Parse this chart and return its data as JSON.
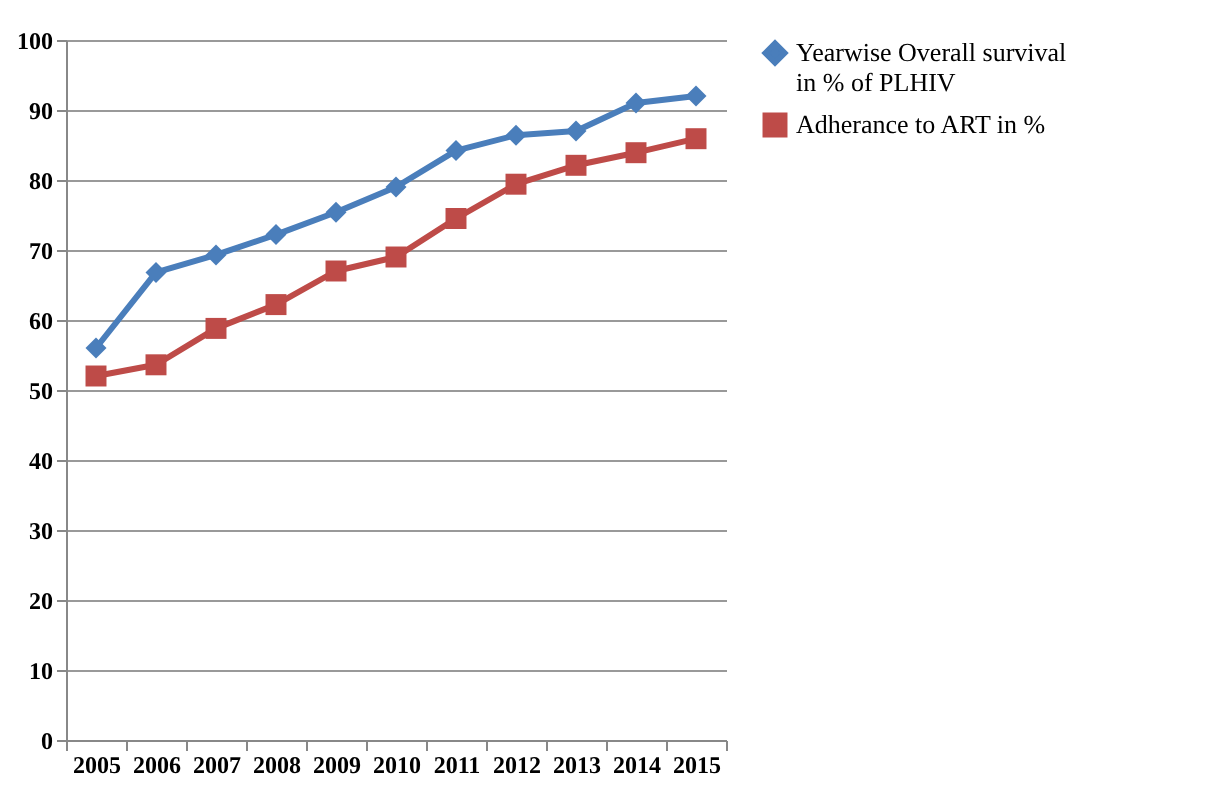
{
  "chart_data": {
    "type": "line",
    "categories": [
      "2005",
      "2006",
      "2007",
      "2008",
      "2009",
      "2010",
      "2011",
      "2012",
      "2013",
      "2014",
      "2015"
    ],
    "ylim": [
      0,
      100
    ],
    "yticks": [
      0,
      10,
      20,
      30,
      40,
      50,
      60,
      70,
      80,
      90,
      100
    ],
    "grid": "y",
    "legend": "right",
    "series": [
      {
        "name": "Yearwise Overall survival in % of PLHIV",
        "color": "#4a7ebb",
        "marker": "diamond",
        "values": [
          56,
          66.8,
          69.3,
          72.2,
          75.4,
          79,
          84.2,
          86.4,
          87,
          91,
          92
        ]
      },
      {
        "name": "Adherance to ART in %",
        "color": "#be4b48",
        "marker": "square",
        "values": [
          52,
          53.6,
          58.8,
          62.2,
          67,
          69,
          74.5,
          79.4,
          82.1,
          83.9,
          85.9
        ]
      }
    ]
  }
}
